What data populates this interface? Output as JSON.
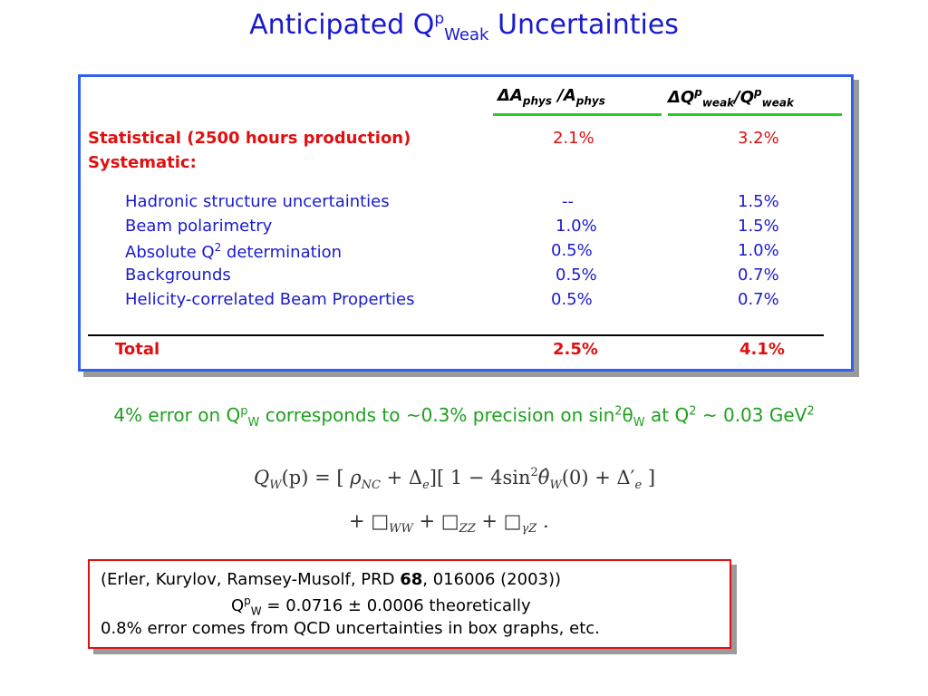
{
  "title": {
    "main": "Anticipated Q",
    "sup": "p",
    "sub": "Weak",
    "tail": "Uncertainties"
  },
  "table": {
    "header_a": {
      "delta": "Δ",
      "a": "A",
      "phys1": "phys",
      "sep": " /A",
      "phys2": "phys"
    },
    "header_q": {
      "delta": "Δ",
      "q": "Q",
      "p1": "p",
      "weak1": "weak",
      "sep": "/Q",
      "p2": "p",
      "weak2": "weak"
    },
    "statistical": {
      "label": "Statistical (2500 hours production)",
      "a": "2.1%",
      "q": "3.2%"
    },
    "systematic_label": "Systematic:",
    "rows": [
      {
        "label": "Hadronic structure uncertainties",
        "a": "--",
        "q": "1.5%"
      },
      {
        "label": "Beam polarimetry",
        "a": "1.0%",
        "q": "1.5%"
      },
      {
        "label_pre": "Absolute Q",
        "label_sup": "2",
        "label_post": " determination",
        "a": "0.5%",
        "q": "1.0%"
      },
      {
        "label": "Backgrounds",
        "a": "0.5%",
        "q": "0.7%"
      },
      {
        "label": "Helicity-correlated Beam Properties",
        "a": "0.5%",
        "q": "0.7%"
      }
    ],
    "total": {
      "label": "Total",
      "a": "2.5%",
      "q": "4.1%"
    }
  },
  "error_line": {
    "p1": "4% error on Q",
    "s1": "p",
    "b1": "W",
    "p2": " corresponds to ~0.3% precision on sin",
    "s2": "2",
    "theta": "θ",
    "b2": "W",
    "p3": " at Q",
    "s3": "2",
    "p4": " ~ 0.03 GeV",
    "s4": "2"
  },
  "formula": {
    "q": "Q",
    "w1": "W",
    "p": "(p) = [ ",
    "rho": "ρ",
    "nc": "NC",
    "plus1": " + Δ",
    "e1": "e",
    "mid": "][ 1 − 4sin",
    "two": "2",
    "theta_hat": "θ̂",
    "w2": "W",
    "zero": "(0) + Δ′",
    "e2": "e",
    "close": " ]",
    "line2_plus": "+ □",
    "ww": "WW",
    "plus2": " + □",
    "zz": "ZZ",
    "plus3": " + □",
    "gz": "γZ",
    "dot": " ."
  },
  "citation": {
    "line1_pre": "(Erler, Kurylov, Ramsey-Musolf, PRD ",
    "line1_bold": "68",
    "line1_post": ", 016006 (2003))",
    "line2_q": "Q",
    "line2_sup": "p",
    "line2_sub": "W",
    "line2_rest": " = 0.0716 ± 0.0006   theoretically",
    "line3": "0.8% error comes from QCD uncertainties in box graphs, etc."
  },
  "colors": {
    "title": "#1a1ad0",
    "table_border": "#2f60f0",
    "red": "#e01010",
    "green": "#1fa01f",
    "rule_green": "#22cc22"
  }
}
